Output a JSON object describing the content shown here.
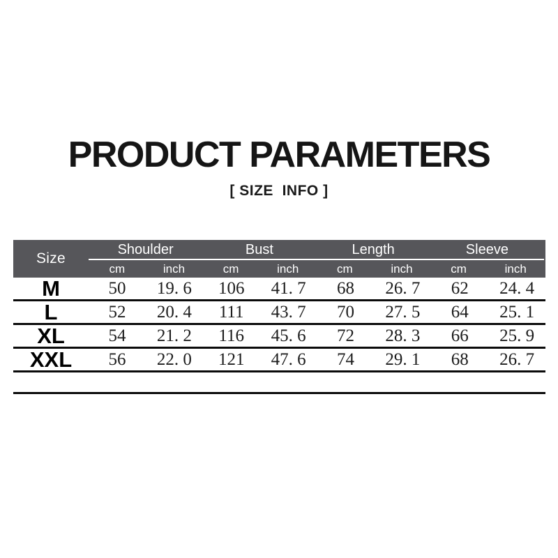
{
  "page": {
    "title": "PRODUCT PARAMETERS",
    "subtitle": "[ SIZE  INFO ]"
  },
  "table": {
    "size_header": "Size",
    "groups": [
      {
        "label": "Shoulder"
      },
      {
        "label": "Bust"
      },
      {
        "label": "Length"
      },
      {
        "label": "Sleeve"
      }
    ],
    "unit_labels": [
      "cm",
      "inch",
      "cm",
      "inch",
      "cm",
      "inch",
      "cm",
      "inch"
    ],
    "rows": [
      {
        "size": "M",
        "values": [
          "50",
          "19. 6",
          "106",
          "41. 7",
          "68",
          "26. 7",
          "62",
          "24. 4"
        ]
      },
      {
        "size": "L",
        "values": [
          "52",
          "20. 4",
          "111",
          "43. 7",
          "70",
          "27. 5",
          "64",
          "25. 1"
        ]
      },
      {
        "size": "XL",
        "values": [
          "54",
          "21. 2",
          "116",
          "45. 6",
          "72",
          "28. 3",
          "66",
          "25. 9"
        ]
      },
      {
        "size": "XXL",
        "values": [
          "56",
          "22. 0",
          "121",
          "47. 6",
          "74",
          "29. 1",
          "68",
          "26. 7"
        ]
      }
    ],
    "colors": {
      "header_bg": "#56565a",
      "header_text": "#ffffff",
      "row_line": "#0a0a0a"
    }
  },
  "chart_data": {
    "type": "table",
    "columns": [
      "Size",
      "Shoulder cm",
      "Shoulder inch",
      "Bust cm",
      "Bust inch",
      "Length cm",
      "Length inch",
      "Sleeve cm",
      "Sleeve inch"
    ],
    "rows": [
      [
        "M",
        50,
        19.6,
        106,
        41.7,
        68,
        26.7,
        62,
        24.4
      ],
      [
        "L",
        52,
        20.4,
        111,
        43.7,
        70,
        27.5,
        64,
        25.1
      ],
      [
        "XL",
        54,
        21.2,
        116,
        45.6,
        72,
        28.3,
        66,
        25.9
      ],
      [
        "XXL",
        56,
        22.0,
        121,
        47.6,
        74,
        29.1,
        68,
        26.7
      ]
    ]
  }
}
